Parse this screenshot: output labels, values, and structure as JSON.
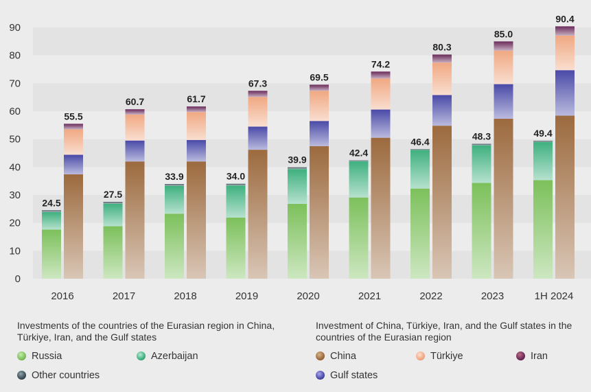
{
  "chart_data": {
    "type": "bar",
    "stacked": true,
    "categories": [
      "2016",
      "2017",
      "2018",
      "2019",
      "2020",
      "2021",
      "2022",
      "2023",
      "1H 2024"
    ],
    "ylim": [
      0,
      90
    ],
    "yticks": [
      0,
      10,
      20,
      30,
      40,
      50,
      60,
      70,
      80,
      90
    ],
    "group1": {
      "title": "Investments of the countries of the Eurasian region in China, Türkiye, Iran, and the Gulf states",
      "totals": [
        "24.5",
        "27.5",
        "33.9",
        "34.0",
        "39.9",
        "42.4",
        "46.4",
        "48.3",
        "49.4"
      ],
      "series": [
        {
          "name": "Russia",
          "color": "#7cc05b",
          "values": [
            17.6,
            18.8,
            23.3,
            21.9,
            26.8,
            29.1,
            32.3,
            34.3,
            35.3
          ]
        },
        {
          "name": "Azerbaijan",
          "color": "#3fb07f",
          "values": [
            6.3,
            8.1,
            10.0,
            11.5,
            12.5,
            13.0,
            13.8,
            13.5,
            13.7
          ]
        },
        {
          "name": "Other countries",
          "color": "#3a4e56",
          "values": [
            0.6,
            0.6,
            0.6,
            0.6,
            0.6,
            0.3,
            0.3,
            0.5,
            0.4
          ]
        }
      ]
    },
    "group2": {
      "title": "Investment of China, Türkiye, Iran, and the Gulf states in the countries of the Eurasian region",
      "totals": [
        "55.5",
        "60.7",
        "61.7",
        "67.3",
        "69.5",
        "74.2",
        "80.3",
        "85.0",
        "90.4"
      ],
      "series": [
        {
          "name": "China",
          "color": "#9c6a3e",
          "values": [
            37.4,
            42.0,
            42.0,
            46.2,
            47.5,
            50.5,
            54.8,
            57.3,
            58.4
          ]
        },
        {
          "name": "Gulf states",
          "color": "#4a4aa8",
          "values": [
            7.0,
            7.5,
            7.7,
            8.3,
            9.0,
            10.1,
            11.0,
            12.4,
            16.3
          ]
        },
        {
          "name": "Türkiye",
          "color": "#f0a882",
          "values": [
            9.1,
            9.3,
            10.0,
            10.6,
            10.8,
            11.1,
            11.6,
            12.0,
            12.4
          ]
        },
        {
          "name": "Iran",
          "color": "#6a2a5a",
          "values": [
            2.0,
            1.9,
            2.0,
            2.2,
            2.2,
            2.5,
            2.9,
            3.3,
            3.3
          ]
        }
      ]
    }
  }
}
